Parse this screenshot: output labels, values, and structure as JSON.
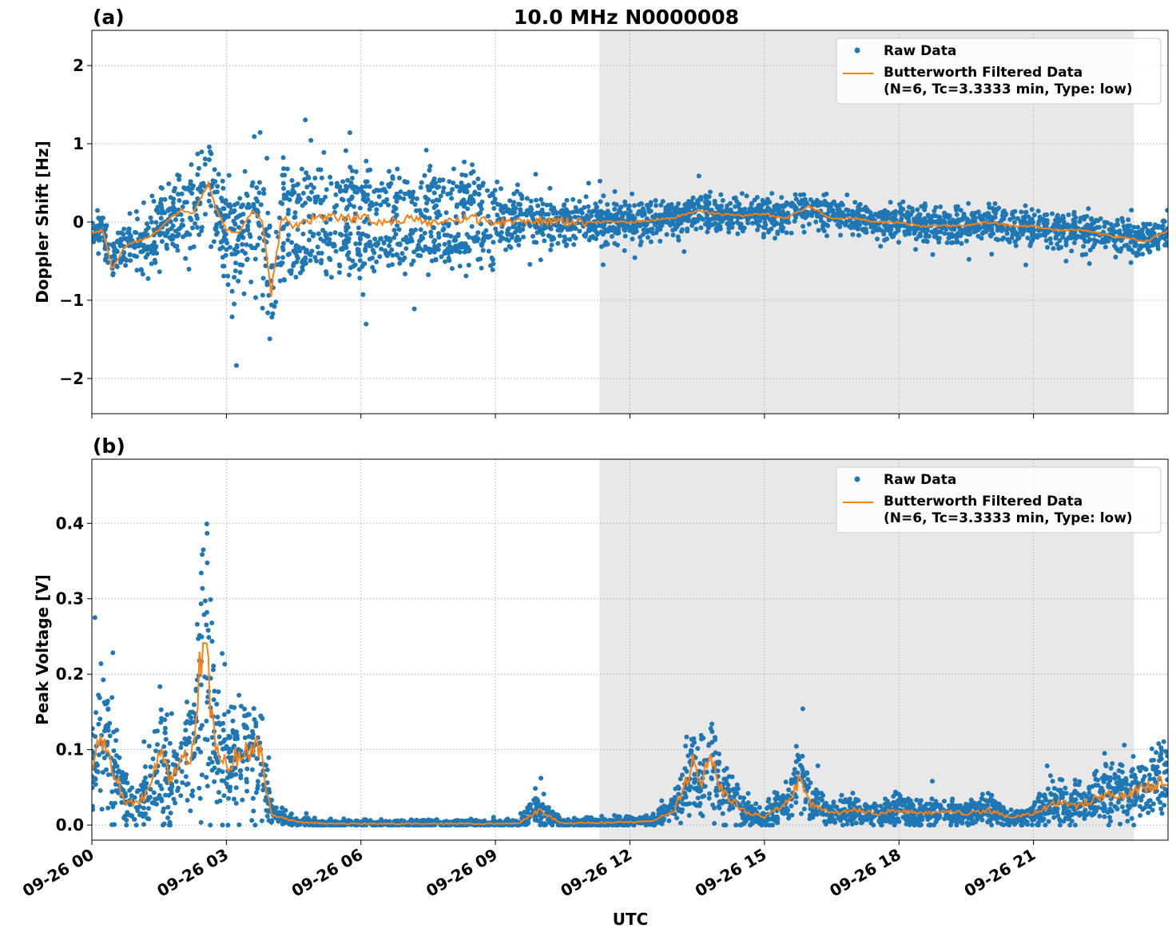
{
  "chart_data": {
    "title": "10.0 MHz N0000008",
    "xlabel": "UTC",
    "x_unit": "hours since 09-26 00:00 UTC",
    "xlim": [
      0,
      24
    ],
    "x_ticks": [
      0,
      3,
      6,
      9,
      12,
      15,
      18,
      21
    ],
    "x_tick_labels": [
      "09-26 00",
      "09-26 03",
      "09-26 06",
      "09-26 09",
      "09-26 12",
      "09-26 15",
      "09-26 18",
      "09-26 21"
    ],
    "shaded_region_hours": [
      11.32,
      23.24
    ],
    "grid": true,
    "colors": {
      "raw": "#1f77b4",
      "filtered": "#ff7f0e",
      "shade": "#e8e8e8"
    },
    "panels": [
      {
        "panel_label": "(a)",
        "type": "scatter+line",
        "ylabel": "Doppler Shift [Hz]",
        "ylim": [
          -2.45,
          2.45
        ],
        "y_ticks": [
          -2,
          -1,
          0,
          1,
          2
        ],
        "y_tick_labels": [
          "−2",
          "−1",
          "0",
          "1",
          "2"
        ],
        "legend": {
          "placement": "top-right",
          "raw": "Raw Data",
          "filtered_line1": "Butterworth Filtered Data",
          "filtered_line2": "(N=6, Tc=3.3333 min, Type: low)"
        },
        "filtered": {
          "x": [
            0,
            0.25,
            0.45,
            0.75,
            1,
            1.25,
            1.5,
            1.75,
            2,
            2.25,
            2.6,
            2.75,
            3,
            3.25,
            3.6,
            3.8,
            4.0,
            4.25,
            4.5,
            5,
            5.5,
            6,
            6.5,
            7,
            7.5,
            8,
            8.5,
            9,
            9.5,
            10,
            10.5,
            11,
            11.5,
            12,
            12.5,
            13,
            13.5,
            14,
            14.5,
            15,
            15.5,
            16,
            16.5,
            17,
            17.5,
            18,
            18.5,
            19,
            19.5,
            20,
            20.5,
            21,
            21.5,
            22,
            22.5,
            23,
            23.5,
            24
          ],
          "y": [
            -0.15,
            -0.1,
            -0.6,
            -0.3,
            -0.25,
            -0.2,
            -0.1,
            0.05,
            0.15,
            0.1,
            0.5,
            0.2,
            -0.1,
            -0.15,
            0.15,
            0.0,
            -0.9,
            0.1,
            -0.05,
            0.05,
            0.05,
            0.05,
            0.0,
            0.05,
            0.0,
            0.0,
            0.05,
            0.0,
            0.02,
            0.03,
            0.0,
            0.0,
            0.0,
            0.0,
            0.02,
            0.05,
            0.15,
            0.1,
            0.08,
            0.1,
            0.05,
            0.2,
            0.05,
            0.05,
            0.0,
            0.0,
            -0.05,
            -0.05,
            -0.05,
            0.0,
            -0.05,
            -0.05,
            -0.1,
            -0.1,
            -0.15,
            -0.2,
            -0.25,
            -0.1
          ]
        },
        "raw_spread": {
          "hours": [
            0,
            4,
            9,
            11,
            13,
            24
          ],
          "halfwidth": [
            0.2,
            1.0,
            0.5,
            0.3,
            0.25,
            0.25
          ]
        }
      },
      {
        "panel_label": "(b)",
        "type": "scatter+line",
        "ylabel": "Peak Voltage [V]",
        "ylim": [
          -0.02,
          0.485
        ],
        "y_ticks": [
          0,
          0.1,
          0.2,
          0.3,
          0.4
        ],
        "y_tick_labels": [
          "0.0",
          "0.1",
          "0.2",
          "0.3",
          "0.4"
        ],
        "legend": {
          "placement": "top-right",
          "raw": "Raw Data",
          "filtered_line1": "Butterworth Filtered Data",
          "filtered_line2": "(N=6, Tc=3.3333 min, Type: low)"
        },
        "filtered": {
          "x": [
            0,
            0.25,
            0.5,
            0.75,
            1,
            1.25,
            1.5,
            1.75,
            2,
            2.25,
            2.5,
            2.75,
            3,
            3.25,
            3.5,
            3.75,
            4.0,
            4.25,
            4.5,
            5,
            6,
            7,
            8,
            9,
            9.5,
            10,
            10.25,
            10.5,
            11,
            12,
            12.5,
            13,
            13.4,
            13.6,
            13.8,
            14,
            14.5,
            15,
            15.5,
            15.8,
            16,
            16.5,
            17,
            17.5,
            18,
            18.5,
            19,
            19.5,
            20,
            20.5,
            21,
            21.5,
            22,
            22.5,
            23,
            23.5,
            24
          ],
          "y": [
            0.08,
            0.12,
            0.07,
            0.03,
            0.03,
            0.04,
            0.1,
            0.06,
            0.08,
            0.1,
            0.26,
            0.1,
            0.08,
            0.09,
            0.1,
            0.1,
            0.015,
            0.01,
            0.005,
            0.002,
            0.002,
            0.002,
            0.002,
            0.002,
            0.002,
            0.02,
            0.01,
            0.002,
            0.003,
            0.004,
            0.005,
            0.02,
            0.08,
            0.06,
            0.09,
            0.05,
            0.02,
            0.01,
            0.03,
            0.06,
            0.03,
            0.015,
            0.02,
            0.015,
            0.02,
            0.015,
            0.02,
            0.015,
            0.02,
            0.01,
            0.015,
            0.03,
            0.025,
            0.04,
            0.04,
            0.05,
            0.06
          ]
        },
        "raw_spread": {
          "relative": 0.9,
          "floor": 0.003
        }
      }
    ]
  }
}
